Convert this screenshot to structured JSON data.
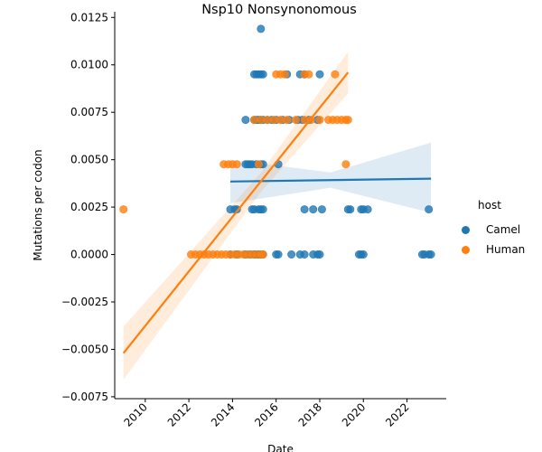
{
  "chart_data": {
    "type": "scatter",
    "title": "Nsp10 Nonsynonomous",
    "xlabel": "Date",
    "ylabel": "Mutations per codon",
    "xlim": [
      2008.6,
      2023.8
    ],
    "ylim": [
      -0.0076,
      0.0128
    ],
    "x_ticks": [
      "2010",
      "2012",
      "2014",
      "2016",
      "2018",
      "2020",
      "2022"
    ],
    "y_ticks": [
      "−0.0075",
      "−0.0050",
      "−0.0025",
      "0.0000",
      "0.0025",
      "0.0050",
      "0.0075",
      "0.0100",
      "0.0125"
    ],
    "legend": {
      "title": "host",
      "placement": "right",
      "entries": [
        {
          "label": "Camel",
          "color": "#1f77b4"
        },
        {
          "label": "Human",
          "color": "#ff7f0e"
        }
      ]
    },
    "series": [
      {
        "name": "Camel",
        "color": "#1f77b4",
        "points": [
          [
            2015.3,
            0.0119
          ],
          [
            2015.0,
            0.0095
          ],
          [
            2015.1,
            0.0095
          ],
          [
            2015.2,
            0.0095
          ],
          [
            2015.3,
            0.0095
          ],
          [
            2015.4,
            0.0095
          ],
          [
            2016.5,
            0.0095
          ],
          [
            2017.1,
            0.0095
          ],
          [
            2017.3,
            0.0095
          ],
          [
            2018.0,
            0.0095
          ],
          [
            2014.6,
            0.0071
          ],
          [
            2015.0,
            0.0071
          ],
          [
            2015.1,
            0.0071
          ],
          [
            2015.2,
            0.0071
          ],
          [
            2015.3,
            0.0071
          ],
          [
            2015.4,
            0.0071
          ],
          [
            2015.6,
            0.0071
          ],
          [
            2015.8,
            0.0071
          ],
          [
            2016.0,
            0.0071
          ],
          [
            2016.3,
            0.0071
          ],
          [
            2016.6,
            0.0071
          ],
          [
            2017.0,
            0.0071
          ],
          [
            2017.2,
            0.0071
          ],
          [
            2017.5,
            0.0071
          ],
          [
            2017.9,
            0.0071
          ],
          [
            2014.6,
            0.00476
          ],
          [
            2014.7,
            0.00476
          ],
          [
            2014.8,
            0.00476
          ],
          [
            2014.9,
            0.00476
          ],
          [
            2015.1,
            0.00476
          ],
          [
            2015.3,
            0.00476
          ],
          [
            2015.4,
            0.00476
          ],
          [
            2016.1,
            0.00476
          ],
          [
            2013.9,
            0.00238
          ],
          [
            2014.1,
            0.00238
          ],
          [
            2014.2,
            0.00238
          ],
          [
            2014.9,
            0.00238
          ],
          [
            2015.0,
            0.00238
          ],
          [
            2015.2,
            0.00238
          ],
          [
            2015.3,
            0.00238
          ],
          [
            2015.4,
            0.00238
          ],
          [
            2017.3,
            0.00238
          ],
          [
            2017.7,
            0.00238
          ],
          [
            2018.1,
            0.00238
          ],
          [
            2019.3,
            0.00238
          ],
          [
            2019.4,
            0.00238
          ],
          [
            2019.9,
            0.00238
          ],
          [
            2020.0,
            0.00238
          ],
          [
            2020.2,
            0.00238
          ],
          [
            2023.0,
            0.00238
          ],
          [
            2013.9,
            0.0
          ],
          [
            2014.2,
            0.0
          ],
          [
            2014.6,
            0.0
          ],
          [
            2014.8,
            0.0
          ],
          [
            2015.0,
            0.0
          ],
          [
            2015.1,
            0.0
          ],
          [
            2015.2,
            0.0
          ],
          [
            2015.3,
            0.0
          ],
          [
            2015.4,
            0.0
          ],
          [
            2016.0,
            0.0
          ],
          [
            2016.1,
            0.0
          ],
          [
            2016.7,
            0.0
          ],
          [
            2017.1,
            0.0
          ],
          [
            2017.3,
            0.0
          ],
          [
            2017.7,
            0.0
          ],
          [
            2017.9,
            0.0
          ],
          [
            2018.0,
            0.0
          ],
          [
            2019.8,
            0.0
          ],
          [
            2019.9,
            0.0
          ],
          [
            2020.0,
            0.0
          ],
          [
            2022.7,
            0.0
          ],
          [
            2022.8,
            0.0
          ],
          [
            2023.0,
            0.0
          ],
          [
            2023.1,
            0.0
          ]
        ],
        "regression": {
          "x_range": [
            2013.9,
            2023.1
          ],
          "y_start": 0.00385,
          "y_end": 0.004,
          "ci_start": [
            0.0027,
            0.005
          ],
          "ci_end": [
            0.0022,
            0.0059
          ]
        }
      },
      {
        "name": "Human",
        "color": "#ff7f0e",
        "points": [
          [
            2009.0,
            0.00238
          ],
          [
            2012.1,
            0.0
          ],
          [
            2012.3,
            0.0
          ],
          [
            2012.5,
            0.0
          ],
          [
            2012.7,
            0.0
          ],
          [
            2012.9,
            0.0
          ],
          [
            2013.1,
            0.0
          ],
          [
            2013.3,
            0.0
          ],
          [
            2013.5,
            0.0
          ],
          [
            2013.7,
            0.0
          ],
          [
            2013.9,
            0.0
          ],
          [
            2014.1,
            0.0
          ],
          [
            2014.3,
            0.0
          ],
          [
            2014.5,
            0.0
          ],
          [
            2014.7,
            0.0
          ],
          [
            2014.9,
            0.0
          ],
          [
            2015.1,
            0.0
          ],
          [
            2015.3,
            0.0
          ],
          [
            2015.4,
            0.0
          ],
          [
            2013.6,
            0.00476
          ],
          [
            2013.8,
            0.00476
          ],
          [
            2014.0,
            0.00476
          ],
          [
            2014.2,
            0.00476
          ],
          [
            2015.2,
            0.00476
          ],
          [
            2019.2,
            0.00476
          ],
          [
            2015.0,
            0.0071
          ],
          [
            2015.3,
            0.0071
          ],
          [
            2015.6,
            0.0071
          ],
          [
            2015.9,
            0.0071
          ],
          [
            2016.2,
            0.0071
          ],
          [
            2016.5,
            0.0071
          ],
          [
            2016.9,
            0.0071
          ],
          [
            2017.3,
            0.0071
          ],
          [
            2017.6,
            0.0071
          ],
          [
            2018.0,
            0.0071
          ],
          [
            2018.4,
            0.0071
          ],
          [
            2018.6,
            0.0071
          ],
          [
            2018.8,
            0.0071
          ],
          [
            2019.0,
            0.0071
          ],
          [
            2019.2,
            0.0071
          ],
          [
            2019.3,
            0.0071
          ],
          [
            2016.0,
            0.0095
          ],
          [
            2016.2,
            0.0095
          ],
          [
            2016.4,
            0.0095
          ],
          [
            2017.3,
            0.0095
          ],
          [
            2017.5,
            0.0095
          ],
          [
            2018.7,
            0.0095
          ]
        ],
        "regression": {
          "x_range": [
            2009.0,
            2019.3
          ],
          "y_start": -0.0052,
          "y_end": 0.0096,
          "ci_start": [
            -0.0066,
            -0.0038
          ],
          "ci_end": [
            0.0085,
            0.0107
          ],
          "ci_mid": [
            0.0033,
            0.0043
          ],
          "x_mid": 2015.3
        }
      }
    ]
  }
}
